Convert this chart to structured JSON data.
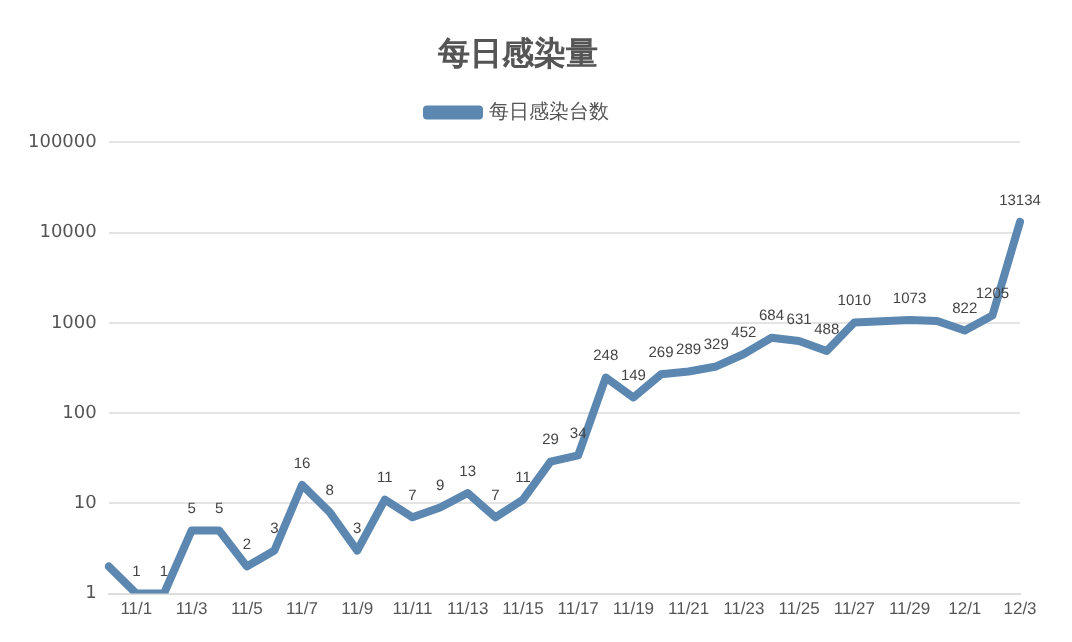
{
  "chart_data": {
    "type": "line",
    "title": "每日感染量",
    "categories": [
      null,
      "11/1",
      null,
      "11/3",
      null,
      "11/5",
      null,
      "11/7",
      null,
      "11/9",
      null,
      "11/11",
      null,
      "11/13",
      null,
      "11/15",
      null,
      "11/17",
      null,
      "11/19",
      null,
      "11/21",
      null,
      "11/23",
      null,
      "11/25",
      null,
      "11/27",
      null,
      "11/29",
      null,
      "12/1",
      null,
      "12/3"
    ],
    "series": [
      {
        "name": "每日感染台数",
        "color": "#5b87b0",
        "values": [
          2,
          1,
          1,
          5,
          5,
          2,
          3,
          16,
          8,
          3,
          11,
          7,
          9,
          13,
          7,
          11,
          29,
          34,
          248,
          149,
          269,
          289,
          329,
          452,
          684,
          631,
          488,
          1010,
          1040,
          1073,
          1050,
          822,
          1205,
          13134
        ],
        "value_labels": [
          null,
          "1",
          "1",
          "5",
          "5",
          "2",
          "3",
          "16",
          "8",
          "3",
          "11",
          "7",
          "9",
          "13",
          "7",
          "11",
          "29",
          "34",
          "248",
          "149",
          "269",
          "289",
          "329",
          "452",
          "684",
          "631",
          "488",
          "1010",
          null,
          "1073",
          null,
          "822",
          "1205",
          "13134"
        ]
      }
    ],
    "log": "y",
    "ylim": [
      1,
      100000
    ],
    "yticks": [
      1,
      10,
      100,
      1000,
      10000,
      100000
    ],
    "grid": "y",
    "legend": "top",
    "marker": "none",
    "line_style": "solid"
  }
}
